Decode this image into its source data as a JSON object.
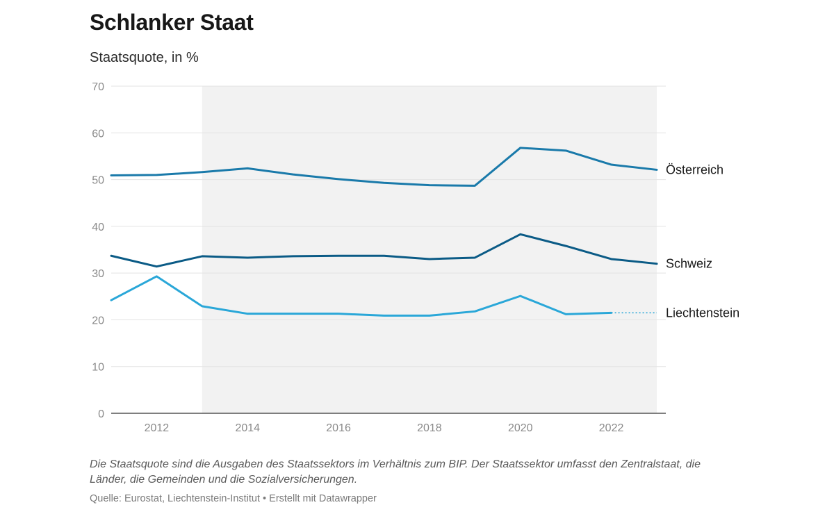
{
  "title": "Schlanker Staat",
  "subtitle": "Staatsquote, in %",
  "note": "Die Staatsquote sind die Ausgaben des Staatssektors im Verhältnis zum BIP. Der Staatssektor umfasst den Zentralstaat, die Länder, die Gemeinden und die Sozialversicherungen.",
  "source": "Quelle: Eurostat, Liechtenstein-Institut • Erstellt mit Datawrapper",
  "chart_data": {
    "type": "line",
    "x": [
      2011,
      2012,
      2013,
      2014,
      2015,
      2016,
      2017,
      2018,
      2019,
      2020,
      2021,
      2022,
      2023
    ],
    "x_ticks": [
      2012,
      2014,
      2016,
      2018,
      2020,
      2022
    ],
    "y_ticks": [
      0,
      10,
      20,
      30,
      40,
      50,
      60,
      70
    ],
    "xlim": [
      2011,
      2023
    ],
    "ylim": [
      0,
      70
    ],
    "grid": "horizontal",
    "shaded_range": [
      2013,
      2023
    ],
    "series": [
      {
        "name": "Österreich",
        "color": "#1a7aaa",
        "values": [
          50.9,
          51.0,
          51.6,
          52.4,
          51.1,
          50.1,
          49.3,
          48.8,
          48.7,
          56.8,
          56.2,
          53.2,
          52.1
        ]
      },
      {
        "name": "Schweiz",
        "color": "#0b5b86",
        "values": [
          33.7,
          31.4,
          33.6,
          33.3,
          33.6,
          33.7,
          33.7,
          33.0,
          33.3,
          38.3,
          35.8,
          33.0,
          32.0
        ]
      },
      {
        "name": "Liechtenstein",
        "color": "#2aa7d8",
        "values": [
          24.2,
          29.3,
          22.9,
          21.3,
          21.3,
          21.3,
          20.9,
          20.9,
          21.8,
          25.1,
          21.2,
          21.5,
          null
        ],
        "projection_to": 2023
      }
    ]
  }
}
